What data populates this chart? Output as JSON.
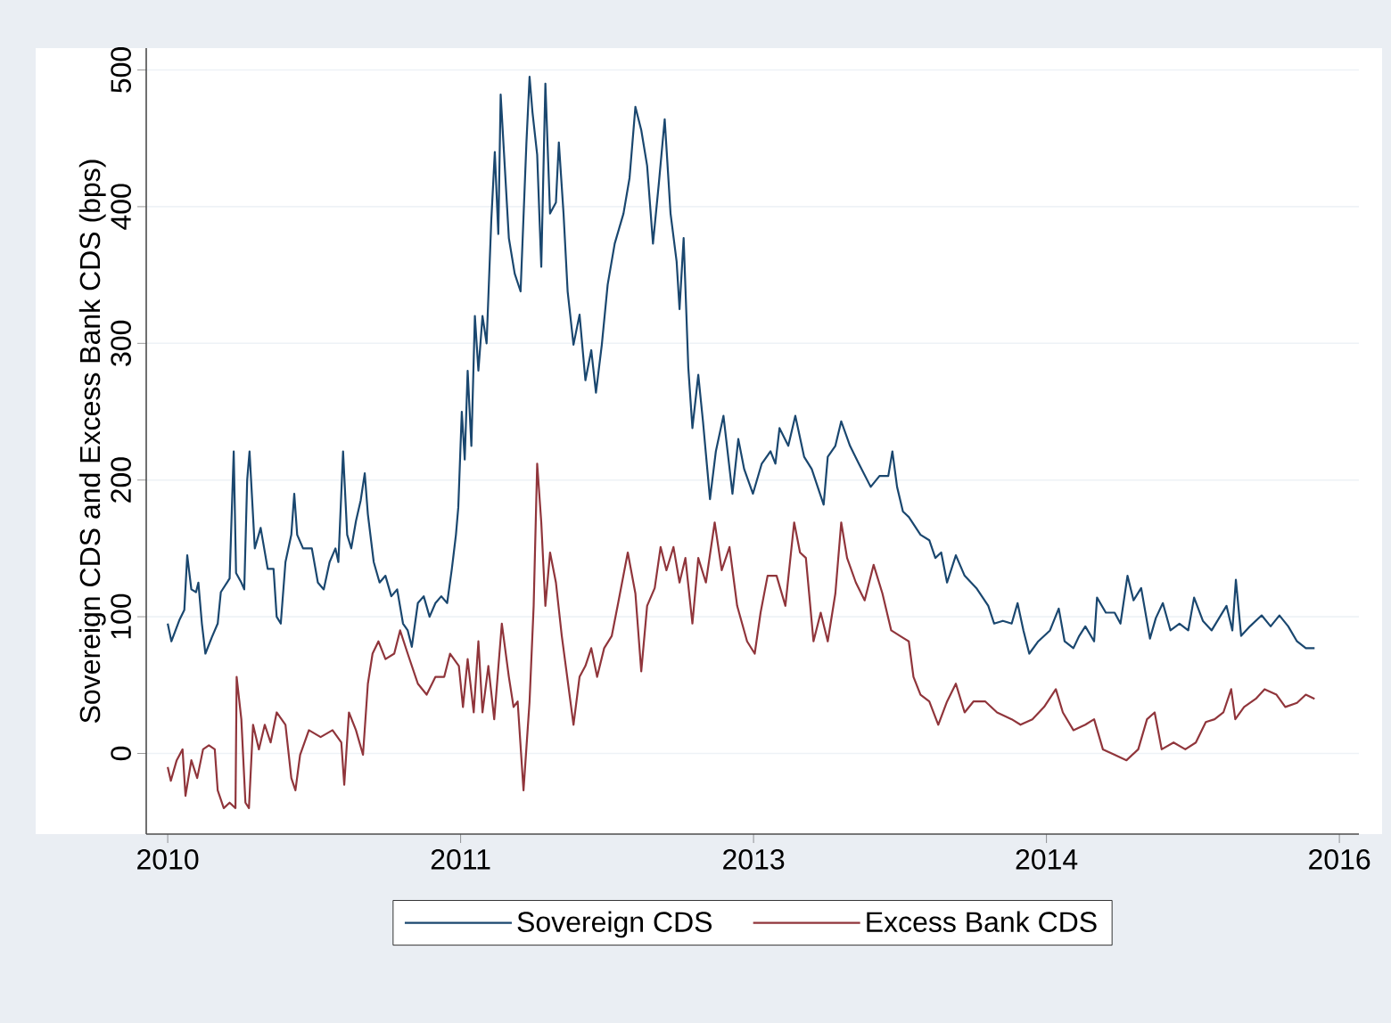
{
  "chart_data": {
    "type": "line",
    "ylabel": "Sovereign CDS and Excess Bank CDS (bps)",
    "xlim": [
      2009.89,
      2016.1
    ],
    "ylim": [
      -59,
      516
    ],
    "xticks": [
      {
        "value": 2010,
        "label": "2010"
      },
      {
        "value": 2011.5,
        "label": "2011"
      },
      {
        "value": 2013,
        "label": "2013"
      },
      {
        "value": 2014.5,
        "label": "2014"
      },
      {
        "value": 2016,
        "label": "2016"
      }
    ],
    "yticks": [
      0,
      100,
      200,
      300,
      400,
      500
    ],
    "grid": "y",
    "legend": "bottom",
    "marker": "none",
    "line_style": "solid",
    "series": [
      {
        "name": "Sovereign CDS",
        "color": "#1a476f",
        "x": [
          2010.0,
          2010.019,
          2010.061,
          2010.085,
          2010.1,
          2010.121,
          2010.145,
          2010.157,
          2010.175,
          2010.193,
          2010.226,
          2010.256,
          2010.272,
          2010.317,
          2010.338,
          2010.35,
          2010.377,
          2010.392,
          2010.407,
          2010.419,
          2010.446,
          2010.476,
          2010.512,
          2010.542,
          2010.558,
          2010.579,
          2010.603,
          2010.633,
          2010.648,
          2010.663,
          2010.693,
          2010.738,
          2010.769,
          2010.799,
          2010.829,
          2010.859,
          2010.874,
          2010.898,
          2010.919,
          2010.94,
          2010.964,
          2010.988,
          2011.009,
          2011.025,
          2011.055,
          2011.085,
          2011.115,
          2011.145,
          2011.175,
          2011.205,
          2011.229,
          2011.25,
          2011.281,
          2011.311,
          2011.341,
          2011.371,
          2011.401,
          2011.431,
          2011.455,
          2011.476,
          2011.488,
          2011.506,
          2011.521,
          2011.536,
          2011.555,
          2011.573,
          2011.591,
          2011.612,
          2011.633,
          2011.657,
          2011.675,
          2011.693,
          2011.705,
          2011.747,
          2011.777,
          2011.807,
          2011.837,
          2011.853,
          2011.868,
          2011.892,
          2011.913,
          2011.934,
          2011.958,
          2011.988,
          2012.003,
          2012.027,
          2012.048,
          2012.078,
          2012.109,
          2012.139,
          2012.169,
          2012.193,
          2012.223,
          2012.253,
          2012.289,
          2012.334,
          2012.365,
          2012.395,
          2012.425,
          2012.455,
          2012.485,
          2012.515,
          2012.545,
          2012.575,
          2012.606,
          2012.621,
          2012.642,
          2012.666,
          2012.687,
          2012.717,
          2012.741,
          2012.777,
          2012.807,
          2012.846,
          2012.892,
          2012.922,
          2012.952,
          2012.997,
          2013.042,
          2013.087,
          2013.112,
          2013.133,
          2013.178,
          2013.214,
          2013.259,
          2013.298,
          2013.359,
          2013.38,
          2013.419,
          2013.449,
          2013.494,
          2013.539,
          2013.6,
          2013.645,
          2013.69,
          2013.711,
          2013.735,
          2013.765,
          2013.795,
          2013.855,
          2013.9,
          2013.931,
          2013.961,
          2013.991,
          2014.036,
          2014.081,
          2014.141,
          2014.202,
          2014.232,
          2014.277,
          2014.322,
          2014.352,
          2014.382,
          2014.412,
          2014.458,
          2014.518,
          2014.563,
          2014.593,
          2014.638,
          2014.668,
          2014.699,
          2014.744,
          2014.759,
          2014.804,
          2014.849,
          2014.879,
          2014.915,
          2014.946,
          2014.985,
          2015.03,
          2015.06,
          2015.096,
          2015.135,
          2015.181,
          2015.226,
          2015.256,
          2015.301,
          2015.346,
          2015.422,
          2015.452,
          2015.47,
          2015.497,
          2015.542,
          2015.602,
          2015.648,
          2015.693,
          2015.738,
          2015.783,
          2015.828,
          2015.873
        ],
        "values": [
          95,
          82,
          98,
          105,
          145,
          120,
          118,
          125,
          95,
          73,
          85,
          95,
          118,
          128,
          221,
          132,
          125,
          120,
          200,
          221,
          150,
          165,
          135,
          135,
          100,
          95,
          140,
          160,
          190,
          160,
          150,
          150,
          125,
          120,
          140,
          150,
          140,
          221,
          160,
          150,
          170,
          185,
          205,
          175,
          140,
          125,
          130,
          115,
          120,
          95,
          90,
          78,
          110,
          115,
          100,
          110,
          115,
          110,
          135,
          160,
          180,
          250,
          215,
          280,
          225,
          320,
          280,
          320,
          300,
          390,
          440,
          380,
          482,
          377,
          351,
          338,
          447,
          495,
          469,
          438,
          356,
          490,
          395,
          403,
          447,
          395,
          338,
          299,
          321,
          273,
          295,
          264,
          299,
          343,
          373,
          395,
          421,
          473,
          456,
          430,
          373,
          417,
          464,
          395,
          360,
          325,
          377,
          282,
          238,
          277,
          243,
          186,
          221,
          247,
          190,
          230,
          208,
          190,
          212,
          221,
          212,
          238,
          225,
          247,
          217,
          208,
          182,
          217,
          225,
          243,
          225,
          212,
          195,
          203,
          203,
          221,
          195,
          177,
          173,
          160,
          156,
          143,
          147,
          125,
          145,
          130,
          121,
          108,
          95,
          97,
          95,
          110,
          90,
          73,
          82,
          90,
          106,
          82,
          77,
          86,
          93,
          82,
          114,
          103,
          103,
          95,
          130,
          112,
          121,
          84,
          99,
          110,
          90,
          95,
          90,
          114,
          97,
          90,
          108,
          90,
          127,
          86,
          93,
          101,
          93,
          101,
          93,
          82,
          77,
          77
        ]
      },
      {
        "name": "Excess Bank CDS",
        "color": "#90353b",
        "x": [
          2010.0,
          2010.016,
          2010.046,
          2010.076,
          2010.091,
          2010.121,
          2010.151,
          2010.181,
          2010.211,
          2010.241,
          2010.256,
          2010.287,
          2010.317,
          2010.347,
          2010.353,
          2010.377,
          2010.398,
          2010.416,
          2010.437,
          2010.467,
          2010.497,
          2010.527,
          2010.558,
          2010.603,
          2010.633,
          2010.654,
          2010.678,
          2010.723,
          2010.783,
          2010.844,
          2010.889,
          2010.904,
          2010.928,
          2010.964,
          2011.0,
          2011.025,
          2011.049,
          2011.079,
          2011.115,
          2011.16,
          2011.19,
          2011.229,
          2011.281,
          2011.326,
          2011.371,
          2011.416,
          2011.446,
          2011.491,
          2011.512,
          2011.536,
          2011.567,
          2011.591,
          2011.612,
          2011.642,
          2011.672,
          2011.711,
          2011.747,
          2011.771,
          2011.792,
          2011.822,
          2011.853,
          2011.874,
          2011.892,
          2011.913,
          2011.934,
          2011.958,
          2011.988,
          2012.018,
          2012.042,
          2012.078,
          2012.109,
          2012.139,
          2012.169,
          2012.199,
          2012.235,
          2012.274,
          2012.304,
          2012.356,
          2012.395,
          2012.425,
          2012.455,
          2012.494,
          2012.524,
          2012.554,
          2012.59,
          2012.621,
          2012.651,
          2012.687,
          2012.717,
          2012.756,
          2012.801,
          2012.837,
          2012.877,
          2012.916,
          2012.967,
          2013.006,
          2013.036,
          2013.072,
          2013.118,
          2013.163,
          2013.208,
          2013.238,
          2013.268,
          2013.307,
          2013.344,
          2013.38,
          2013.419,
          2013.449,
          2013.479,
          2013.524,
          2013.569,
          2013.615,
          2013.66,
          2013.705,
          2013.75,
          2013.795,
          2013.819,
          2013.855,
          2013.9,
          2013.946,
          2013.991,
          2014.036,
          2014.081,
          2014.126,
          2014.187,
          2014.247,
          2014.322,
          2014.367,
          2014.428,
          2014.488,
          2014.548,
          2014.584,
          2014.638,
          2014.699,
          2014.744,
          2014.789,
          2014.849,
          2014.91,
          2014.97,
          2015.015,
          2015.054,
          2015.09,
          2015.151,
          2015.211,
          2015.265,
          2015.316,
          2015.361,
          2015.406,
          2015.446,
          2015.467,
          2015.512,
          2015.572,
          2015.617,
          2015.678,
          2015.723,
          2015.783,
          2015.828,
          2015.873
        ],
        "values": [
          -10,
          -20,
          -5,
          3,
          -31,
          -5,
          -18,
          3,
          6,
          3,
          -27,
          -40,
          -36,
          -40,
          56,
          25,
          -36,
          -40,
          21,
          3,
          21,
          8,
          30,
          21,
          -18,
          -27,
          -1,
          17,
          12,
          17,
          8,
          -23,
          30,
          17,
          -1,
          51,
          73,
          82,
          69,
          73,
          90,
          73,
          51,
          43,
          56,
          56,
          73,
          64,
          34,
          69,
          30,
          82,
          30,
          64,
          25,
          95,
          56,
          34,
          38,
          -27,
          38,
          108,
          212,
          169,
          108,
          147,
          125,
          86,
          60,
          21,
          56,
          64,
          77,
          56,
          77,
          86,
          108,
          147,
          117,
          60,
          108,
          121,
          151,
          134,
          151,
          125,
          143,
          95,
          143,
          125,
          169,
          134,
          151,
          108,
          82,
          73,
          103,
          130,
          130,
          108,
          169,
          147,
          143,
          82,
          103,
          82,
          117,
          169,
          143,
          125,
          112,
          138,
          117,
          90,
          86,
          82,
          56,
          43,
          38,
          21,
          38,
          51,
          30,
          38,
          38,
          30,
          25,
          21,
          25,
          34,
          47,
          30,
          17,
          21,
          25,
          3,
          -1,
          -5,
          3,
          25,
          30,
          3,
          8,
          3,
          8,
          23,
          25,
          30,
          47,
          25,
          34,
          40,
          47,
          43,
          34,
          37,
          43,
          40
        ]
      }
    ]
  }
}
